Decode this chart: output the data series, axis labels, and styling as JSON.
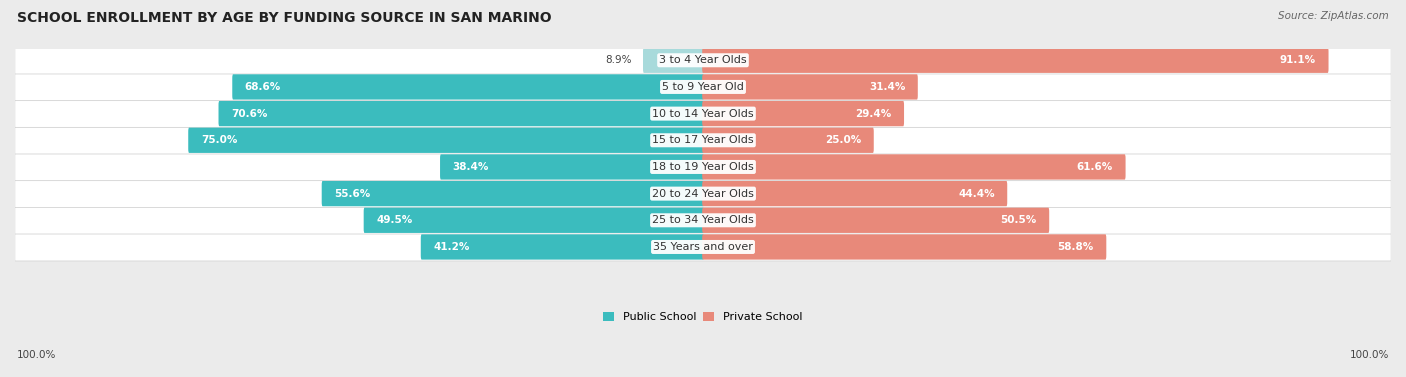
{
  "title": "SCHOOL ENROLLMENT BY AGE BY FUNDING SOURCE IN SAN MARINO",
  "source": "Source: ZipAtlas.com",
  "categories": [
    "3 to 4 Year Olds",
    "5 to 9 Year Old",
    "10 to 14 Year Olds",
    "15 to 17 Year Olds",
    "18 to 19 Year Olds",
    "20 to 24 Year Olds",
    "25 to 34 Year Olds",
    "35 Years and over"
  ],
  "public_values": [
    8.9,
    68.6,
    70.6,
    75.0,
    38.4,
    55.6,
    49.5,
    41.2
  ],
  "private_values": [
    91.1,
    31.4,
    29.4,
    25.0,
    61.6,
    44.4,
    50.5,
    58.8
  ],
  "public_color": "#3BBCBE",
  "private_color": "#E8897A",
  "public_light_color": "#A8DADB",
  "private_light_color": "#F2B8AE",
  "bg_color": "#EBEBEB",
  "row_bg_color": "#FFFFFF",
  "title_fontsize": 10,
  "label_fontsize": 8,
  "value_fontsize": 7.5,
  "legend_fontsize": 8,
  "footer_fontsize": 7.5
}
